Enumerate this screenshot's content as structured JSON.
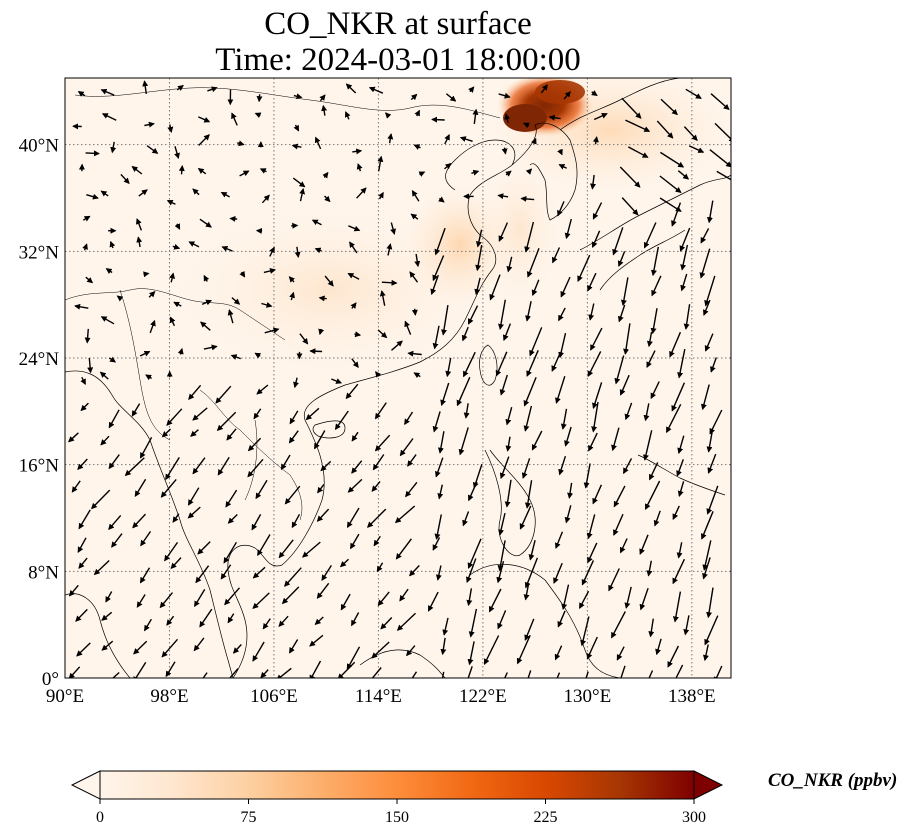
{
  "title": {
    "line1": "CO_NKR at surface",
    "line2": "Time: 2024-03-01 18:00:00"
  },
  "map": {
    "lon_range": [
      90,
      141
    ],
    "lat_range": [
      0,
      45
    ],
    "lon_ticks": [
      {
        "value": 90,
        "label": "90°E"
      },
      {
        "value": 98,
        "label": "98°E"
      },
      {
        "value": 106,
        "label": "106°E"
      },
      {
        "value": 114,
        "label": "114°E"
      },
      {
        "value": 122,
        "label": "122°E"
      },
      {
        "value": 130,
        "label": "130°E"
      },
      {
        "value": 138,
        "label": "138°E"
      }
    ],
    "lat_ticks": [
      {
        "value": 0,
        "label": "0°"
      },
      {
        "value": 8,
        "label": "8°N"
      },
      {
        "value": 16,
        "label": "16°N"
      },
      {
        "value": 24,
        "label": "24°N"
      },
      {
        "value": 32,
        "label": "32°N"
      },
      {
        "value": 40,
        "label": "40°N"
      }
    ],
    "gridlines": true,
    "plume_colors": [
      "#fff5eb",
      "#fee6ce",
      "#fdd0a2",
      "#fdae6b",
      "#f16913",
      "#d94801",
      "#a63603",
      "#7f2704"
    ]
  },
  "colorbar": {
    "label": "CO_NKR (ppbv)",
    "min": 0,
    "max": 300,
    "extend": "both",
    "ticks": [
      0,
      75,
      150,
      225,
      300
    ],
    "colormap": [
      "#fff5eb",
      "#fee6ce",
      "#fdd0a2",
      "#fdae6b",
      "#fd8d3c",
      "#f16913",
      "#d94801",
      "#a63603",
      "#7f0000"
    ]
  }
}
